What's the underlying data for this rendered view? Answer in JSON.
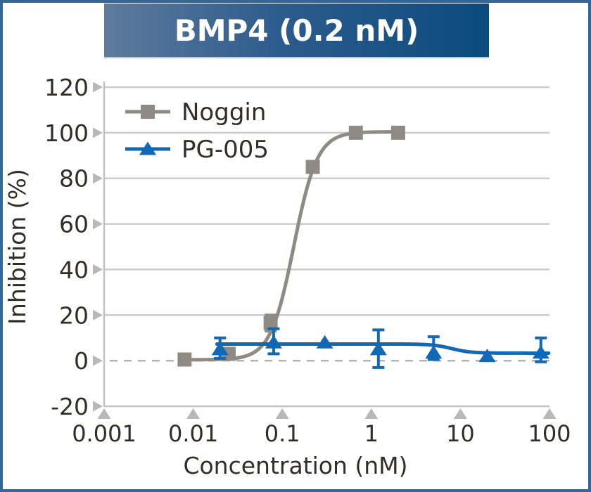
{
  "title": {
    "text": "BMP4 (0.2 nM)"
  },
  "chart_data": {
    "type": "line",
    "x_scale": "log",
    "title": "BMP4 (0.2 nM)",
    "xlabel": "Concentration (nM)",
    "ylabel": "Inhibition (%)",
    "xlim": [
      0.001,
      100
    ],
    "ylim": [
      -20,
      120
    ],
    "x_ticks": [
      0.001,
      0.01,
      0.1,
      1,
      10,
      100
    ],
    "x_tick_labels": [
      "0.001",
      "0.01",
      "0.1",
      "1",
      "10",
      "100"
    ],
    "y_ticks": [
      -20,
      0,
      20,
      40,
      60,
      80,
      100,
      120
    ],
    "y_tick_labels": [
      "-20",
      "0",
      "20",
      "40",
      "60",
      "80",
      "100",
      "120"
    ],
    "grid": "horizontal",
    "zero_line": "dashed",
    "legend_position": "top-left",
    "series": [
      {
        "name": "Noggin",
        "color": "#8f8b84",
        "marker": "square",
        "x": [
          0.008,
          0.025,
          0.074,
          0.22,
          0.67,
          2
        ],
        "y": [
          0.5,
          3,
          16.5,
          85,
          100,
          100
        ],
        "err_up": [
          0,
          0,
          3.5,
          0,
          0,
          0
        ],
        "err_dn": [
          0,
          0,
          3.5,
          0,
          0,
          0
        ],
        "fit": {
          "bottom": 0.4,
          "top": 100.4,
          "ec50": 0.135,
          "hill": 3.3,
          "x_range": [
            0.008,
            2
          ]
        }
      },
      {
        "name": "PG-005",
        "color": "#1168b5",
        "marker": "triangle",
        "x": [
          0.02,
          0.08,
          0.3,
          1.2,
          5,
          20,
          80
        ],
        "y": [
          5,
          8,
          8,
          5,
          3.5,
          2,
          3.5
        ],
        "err_up": [
          5,
          6,
          0,
          8.5,
          7,
          0,
          6.5
        ],
        "err_dn": [
          4,
          5,
          0,
          8,
          3,
          0,
          4
        ],
        "fit": {
          "bottom": 3.3,
          "top": 7.3,
          "ec50": 8,
          "hill": -4,
          "x_range": [
            0.0185,
            98
          ]
        }
      }
    ],
    "colors": {
      "grid": "#cccccc",
      "axis": "#c2c2c2",
      "tick_triangle": "#b8b8b8",
      "zero_line": "#b3b3b3",
      "text": "#332d29",
      "banner_left": "#5e7b9d",
      "banner_right": "#0b4a7d",
      "border": "#33679b",
      "title_text": "#ffffff"
    }
  }
}
